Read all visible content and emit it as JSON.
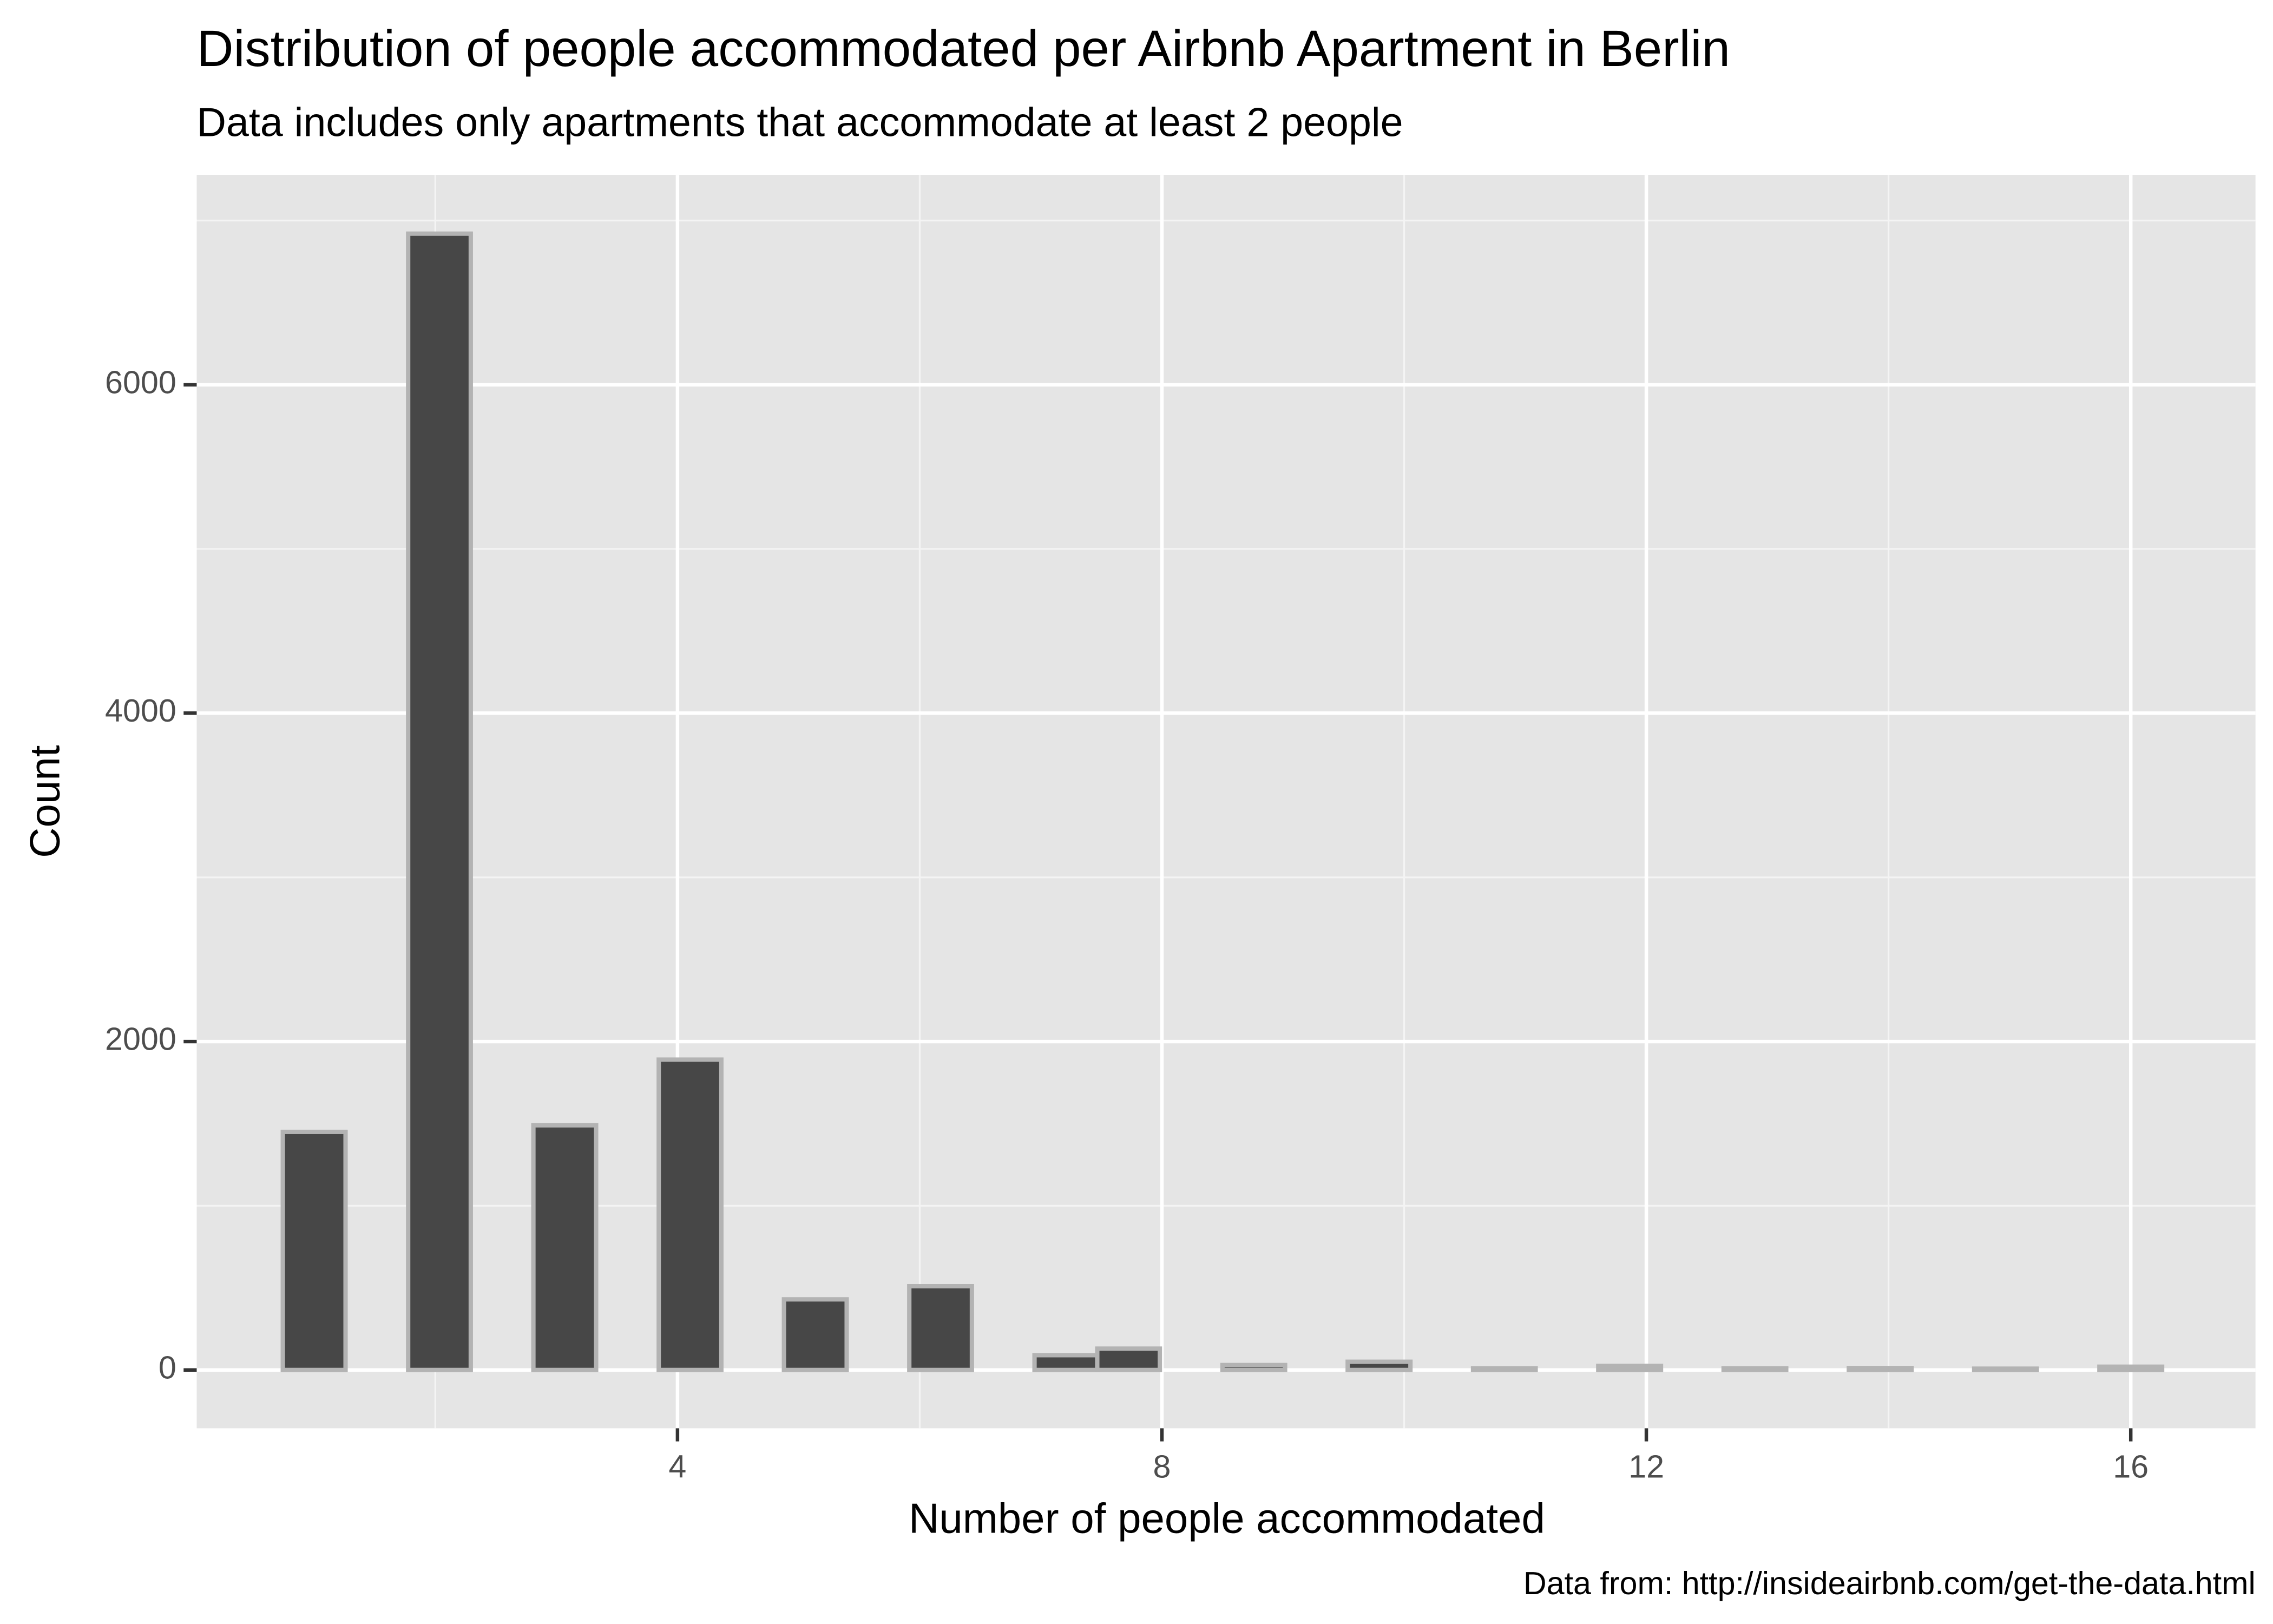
{
  "chart_data": {
    "type": "histogram",
    "title": "Distribution of people accommodated per Airbnb Apartment in Berlin",
    "subtitle": "Data includes only apartments that accommodate at least 2 people",
    "caption": "Data from: http://insideairbnb.com/get-the-data.html",
    "x_label": "Number of people accommodated",
    "y_label": "Count",
    "bins": [
      0.741,
      1.259,
      1.776,
      2.293,
      2.81,
      3.328,
      3.845,
      4.362,
      4.879,
      5.397,
      5.914,
      6.431,
      6.948,
      7.466,
      7.983,
      8.5,
      9.017,
      9.534,
      10.052,
      10.569,
      11.086,
      11.603,
      12.121,
      12.638,
      13.155,
      13.672,
      14.19,
      14.707,
      15.224,
      15.741,
      16.259
    ],
    "values": [
      1450,
      0,
      6920,
      0,
      1490,
      0,
      1890,
      0,
      430,
      0,
      510,
      0,
      90,
      130,
      0,
      30,
      0,
      50,
      0,
      10,
      0,
      25,
      0,
      10,
      0,
      12,
      0,
      8,
      0,
      20
    ],
    "color": "#474747",
    "edge_color": "#b3b3b3",
    "panel_color": "#e5e5e5",
    "grid": true,
    "xlim": [
      0.03,
      17.03
    ],
    "ylim": [
      -355,
      7278
    ],
    "xticks": [
      4,
      8,
      12,
      16
    ],
    "yticks": [
      0,
      2000,
      4000,
      6000
    ],
    "minor_xticks": [
      2,
      6,
      10,
      14
    ],
    "minor_yticks": [
      1000,
      3000,
      5000,
      7000
    ]
  }
}
